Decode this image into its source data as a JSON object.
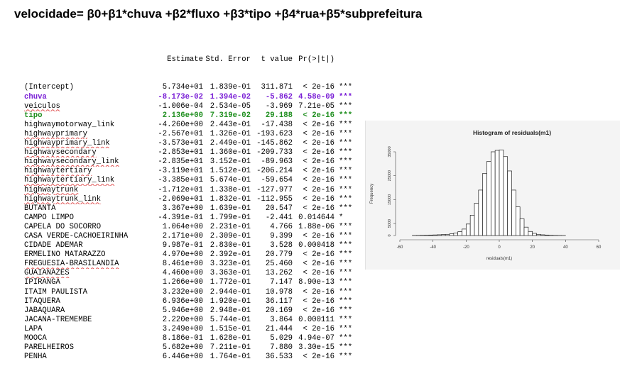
{
  "title": "velocidade= β0+β1*chuva +β2*fluxo +β3*tipo +β4*rua+β5*subprefeitura",
  "table": {
    "headers": [
      "",
      "Estimate",
      "Std. Error",
      "t value",
      "Pr(>|t|)",
      ""
    ],
    "rows": [
      {
        "name": "(Intercept)",
        "est": "5.734e+01",
        "se": "1.839e-01",
        "t": "311.871",
        "p": "< 2e-16",
        "sig": "***",
        "style": "",
        "wavy": false
      },
      {
        "name": "chuva",
        "est": "-8.173e-02",
        "se": "1.394e-02",
        "t": "-5.862",
        "p": "4.58e-09",
        "sig": "***",
        "style": "purple",
        "wavy": false
      },
      {
        "name": "veiculos",
        "est": "-1.006e-04",
        "se": "2.534e-05",
        "t": "-3.969",
        "p": "7.21e-05",
        "sig": "***",
        "style": "",
        "wavy": true
      },
      {
        "name": "tipo",
        "est": "2.136e+00",
        "se": "7.319e-02",
        "t": "29.188",
        "p": "< 2e-16",
        "sig": "***",
        "style": "green",
        "wavy": false
      },
      {
        "name": "highwaymotorway_link",
        "est": "-4.260e+00",
        "se": "2.443e-01",
        "t": "-17.438",
        "p": "< 2e-16",
        "sig": "***",
        "style": "",
        "wavy": false
      },
      {
        "name": "highwayprimary",
        "est": "-2.567e+01",
        "se": "1.326e-01",
        "t": "-193.623",
        "p": "< 2e-16",
        "sig": "***",
        "style": "",
        "wavy": true
      },
      {
        "name": "highwayprimary_link",
        "est": "-3.573e+01",
        "se": "2.449e-01",
        "t": "-145.862",
        "p": "< 2e-16",
        "sig": "***",
        "style": "",
        "wavy": true
      },
      {
        "name": "highwaysecondary",
        "est": "-2.853e+01",
        "se": "1.360e-01",
        "t": "-209.733",
        "p": "< 2e-16",
        "sig": "***",
        "style": "",
        "wavy": true
      },
      {
        "name": "highwaysecondary_link",
        "est": "-2.835e+01",
        "se": "3.152e-01",
        "t": "-89.963",
        "p": "< 2e-16",
        "sig": "***",
        "style": "",
        "wavy": true
      },
      {
        "name": "highwaytertiary",
        "est": "-3.119e+01",
        "se": "1.512e-01",
        "t": "-206.214",
        "p": "< 2e-16",
        "sig": "***",
        "style": "",
        "wavy": true
      },
      {
        "name": "highwaytertiary_link",
        "est": "-3.385e+01",
        "se": "5.674e-01",
        "t": "-59.654",
        "p": "< 2e-16",
        "sig": "***",
        "style": "",
        "wavy": true
      },
      {
        "name": "highwaytrunk",
        "est": "-1.712e+01",
        "se": "1.338e-01",
        "t": "-127.977",
        "p": "< 2e-16",
        "sig": "***",
        "style": "",
        "wavy": true
      },
      {
        "name": "highwaytrunk_link",
        "est": "-2.069e+01",
        "se": "1.832e-01",
        "t": "-112.955",
        "p": "< 2e-16",
        "sig": "***",
        "style": "",
        "wavy": true
      },
      {
        "name": "BUTANTA",
        "est": "3.367e+00",
        "se": "1.639e-01",
        "t": "20.547",
        "p": "< 2e-16",
        "sig": "***",
        "style": "",
        "wavy": false
      },
      {
        "name": "CAMPO LIMPO",
        "est": "-4.391e-01",
        "se": "1.799e-01",
        "t": "-2.441",
        "p": "0.014644",
        "sig": "*",
        "style": "",
        "wavy": false
      },
      {
        "name": "CAPELA DO SOCORRO",
        "est": "1.064e+00",
        "se": "2.231e-01",
        "t": "4.766",
        "p": "1.88e-06",
        "sig": "***",
        "style": "",
        "wavy": false
      },
      {
        "name": "CASA VERDE-CACHOEIRINHA",
        "est": "2.171e+00",
        "se": "2.309e-01",
        "t": "9.399",
        "p": "< 2e-16",
        "sig": "***",
        "style": "",
        "wavy": false
      },
      {
        "name": "CIDADE ADEMAR",
        "est": "9.987e-01",
        "se": "2.830e-01",
        "t": "3.528",
        "p": "0.000418",
        "sig": "***",
        "style": "",
        "wavy": false
      },
      {
        "name": "ERMELINO MATARAZZO",
        "est": "4.970e+00",
        "se": "2.392e-01",
        "t": "20.779",
        "p": "< 2e-16",
        "sig": "***",
        "style": "",
        "wavy": false
      },
      {
        "name": "FREGUESIA-BRASILANDIA",
        "est": "8.461e+00",
        "se": "3.323e-01",
        "t": "25.460",
        "p": "< 2e-16",
        "sig": "***",
        "style": "",
        "wavy": true
      },
      {
        "name": "GUAIANAZES",
        "est": "4.460e+00",
        "se": "3.363e-01",
        "t": "13.262",
        "p": "< 2e-16",
        "sig": "***",
        "style": "",
        "wavy": true
      },
      {
        "name": "IPIRANGA",
        "est": "1.266e+00",
        "se": "1.772e-01",
        "t": "7.147",
        "p": "8.90e-13",
        "sig": "***",
        "style": "",
        "wavy": false
      },
      {
        "name": "ITAIM PAULISTA",
        "est": "3.232e+00",
        "se": "2.944e-01",
        "t": "10.978",
        "p": "< 2e-16",
        "sig": "***",
        "style": "",
        "wavy": false
      },
      {
        "name": "ITAQUERA",
        "est": "6.936e+00",
        "se": "1.920e-01",
        "t": "36.117",
        "p": "< 2e-16",
        "sig": "***",
        "style": "",
        "wavy": false
      },
      {
        "name": "JABAQUARA",
        "est": "5.946e+00",
        "se": "2.948e-01",
        "t": "20.169",
        "p": "< 2e-16",
        "sig": "***",
        "style": "",
        "wavy": false
      },
      {
        "name": "JACANA-TREMEMBE",
        "est": "2.220e+00",
        "se": "5.744e-01",
        "t": "3.864",
        "p": "0.000111",
        "sig": "***",
        "style": "",
        "wavy": false
      },
      {
        "name": "LAPA",
        "est": "3.249e+00",
        "se": "1.515e-01",
        "t": "21.444",
        "p": "< 2e-16",
        "sig": "***",
        "style": "",
        "wavy": false
      },
      {
        "name": "MOOCA",
        "est": "8.186e-01",
        "se": "1.628e-01",
        "t": "5.029",
        "p": "4.94e-07",
        "sig": "***",
        "style": "",
        "wavy": false
      },
      {
        "name": "PARELHEIROS",
        "est": "5.682e+00",
        "se": "7.211e-01",
        "t": "7.880",
        "p": "3.30e-15",
        "sig": "***",
        "style": "",
        "wavy": false
      },
      {
        "name": "PENHA",
        "est": "6.446e+00",
        "se": "1.764e-01",
        "t": "36.533",
        "p": "< 2e-16",
        "sig": "***",
        "style": "",
        "wavy": false
      }
    ]
  },
  "histogram": {
    "title": "Histogram of residuals(m1)",
    "xlabel": "residuals(m1)",
    "ylabel": "Frequency",
    "xlim": [
      -60,
      60
    ],
    "ylim": [
      0,
      35000
    ],
    "xticks": [
      -60,
      -40,
      -20,
      0,
      20,
      40,
      60
    ],
    "yticks": [
      0,
      5000,
      15000,
      25000,
      35000
    ],
    "binwidth": 2.5,
    "bins": [
      {
        "x0": -52.5,
        "count": 50
      },
      {
        "x0": -50,
        "count": 80
      },
      {
        "x0": -47.5,
        "count": 120
      },
      {
        "x0": -45,
        "count": 150
      },
      {
        "x0": -42.5,
        "count": 200
      },
      {
        "x0": -40,
        "count": 250
      },
      {
        "x0": -37.5,
        "count": 320
      },
      {
        "x0": -35,
        "count": 400
      },
      {
        "x0": -32.5,
        "count": 500
      },
      {
        "x0": -30,
        "count": 700
      },
      {
        "x0": -27.5,
        "count": 1000
      },
      {
        "x0": -25,
        "count": 1600
      },
      {
        "x0": -22.5,
        "count": 2700
      },
      {
        "x0": -20,
        "count": 4800
      },
      {
        "x0": -17.5,
        "count": 8500
      },
      {
        "x0": -15,
        "count": 13500
      },
      {
        "x0": -12.5,
        "count": 19000
      },
      {
        "x0": -10,
        "count": 26000
      },
      {
        "x0": -7.5,
        "count": 31000
      },
      {
        "x0": -5,
        "count": 35000
      },
      {
        "x0": -2.5,
        "count": 35600
      },
      {
        "x0": 0,
        "count": 35800
      },
      {
        "x0": 2.5,
        "count": 33000
      },
      {
        "x0": 5,
        "count": 27000
      },
      {
        "x0": 7.5,
        "count": 19000
      },
      {
        "x0": 10,
        "count": 12000
      },
      {
        "x0": 12.5,
        "count": 7000
      },
      {
        "x0": 15,
        "count": 3500
      },
      {
        "x0": 17.5,
        "count": 1700
      },
      {
        "x0": 20,
        "count": 900
      },
      {
        "x0": 22.5,
        "count": 500
      },
      {
        "x0": 25,
        "count": 300
      },
      {
        "x0": 27.5,
        "count": 200
      },
      {
        "x0": 30,
        "count": 120
      },
      {
        "x0": 32.5,
        "count": 80
      },
      {
        "x0": 35,
        "count": 50
      },
      {
        "x0": 37.5,
        "count": 30
      }
    ]
  },
  "chart_data": {
    "type": "bar",
    "title": "Histogram of residuals(m1)",
    "xlabel": "residuals(m1)",
    "ylabel": "Frequency",
    "xlim": [
      -60,
      60
    ],
    "ylim": [
      0,
      35000
    ],
    "grid": false,
    "note": "histogram of residuals, approx. 2.5-unit bins centered near 0; counts in histogram.bins"
  }
}
